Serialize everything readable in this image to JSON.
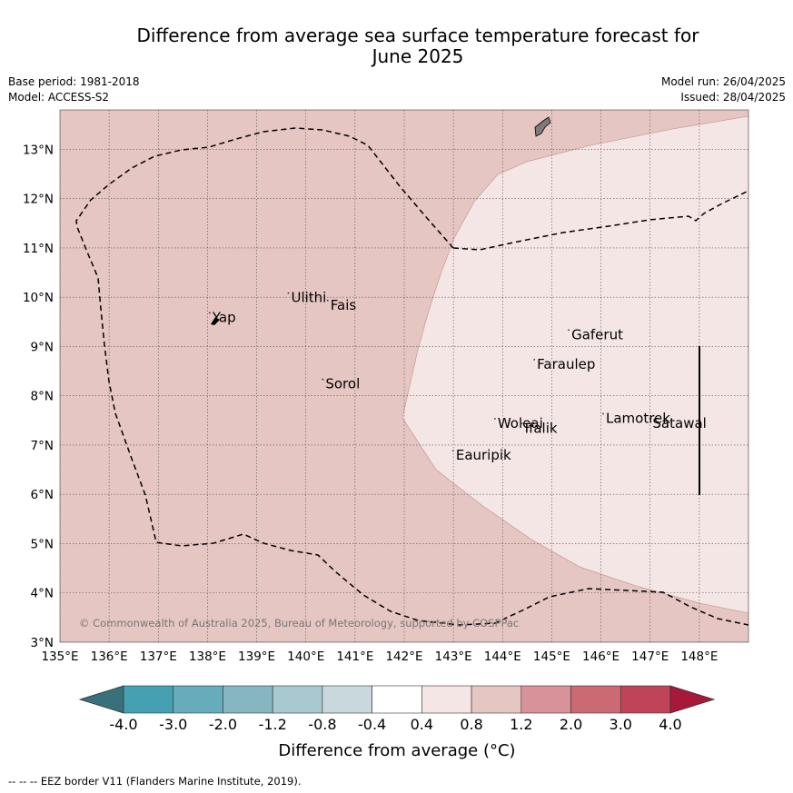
{
  "title_line1": "Difference from average sea surface temperature forecast for",
  "title_line2": "June 2025",
  "base_period": "Base period: 1981-2018",
  "model": "Model: ACCESS-S2",
  "model_run": "Model run: 26/04/2025",
  "issued": "Issued: 28/04/2025",
  "copyright": "© Commonwealth of Australia 2025, Bureau of Meteorology, supported by COSPPac",
  "footer_legend": "-- -- -- EEZ border V11 (Flanders Marine Institute, 2019).",
  "map": {
    "lon_range": [
      135,
      149
    ],
    "lat_range": [
      3,
      13.8
    ],
    "lon_ticks": [
      "135°E",
      "136°E",
      "137°E",
      "138°E",
      "139°E",
      "140°E",
      "141°E",
      "142°E",
      "143°E",
      "144°E",
      "145°E",
      "146°E",
      "147°E",
      "148°E"
    ],
    "lat_ticks": [
      "3°N",
      "4°N",
      "5°N",
      "6°N",
      "7°N",
      "8°N",
      "9°N",
      "10°N",
      "11°N",
      "12°N",
      "13°N"
    ],
    "background_color": "#e6c6c2",
    "anomaly_region_color": "#f4e6e4",
    "places": [
      {
        "name": "Ulithi",
        "lon": 139.7,
        "lat": 9.9
      },
      {
        "name": "Fais",
        "lon": 140.5,
        "lat": 9.75
      },
      {
        "name": "Yap",
        "lon": 138.1,
        "lat": 9.5
      },
      {
        "name": "Gaferut",
        "lon": 145.4,
        "lat": 9.15
      },
      {
        "name": "Faraulep",
        "lon": 144.7,
        "lat": 8.55
      },
      {
        "name": "Sorol",
        "lon": 140.4,
        "lat": 8.15
      },
      {
        "name": "Lamotrek",
        "lon": 146.1,
        "lat": 7.45
      },
      {
        "name": "Woleai",
        "lon": 143.9,
        "lat": 7.35
      },
      {
        "name": "Ifalik",
        "lon": 144.45,
        "lat": 7.25
      },
      {
        "name": "Satawal",
        "lon": 147.05,
        "lat": 7.35
      },
      {
        "name": "Eauripik",
        "lon": 143.05,
        "lat": 6.7
      }
    ]
  },
  "colorbar": {
    "labels": [
      "-4.0",
      "-3.0",
      "-2.0",
      "-1.2",
      "-0.8",
      "-0.4",
      "0.4",
      "0.8",
      "1.2",
      "2.0",
      "3.0",
      "4.0"
    ],
    "colors": [
      "#45a0b2",
      "#66acbb",
      "#86b6c2",
      "#a8c9cf",
      "#c8d8dc",
      "#ffffff",
      "#f4e6e4",
      "#e6c6c2",
      "#d8929a",
      "#cc6a74",
      "#bf4458"
    ],
    "under_color": "#38707b",
    "over_color": "#a8183a",
    "axis_label": "Difference from average (°C)"
  }
}
